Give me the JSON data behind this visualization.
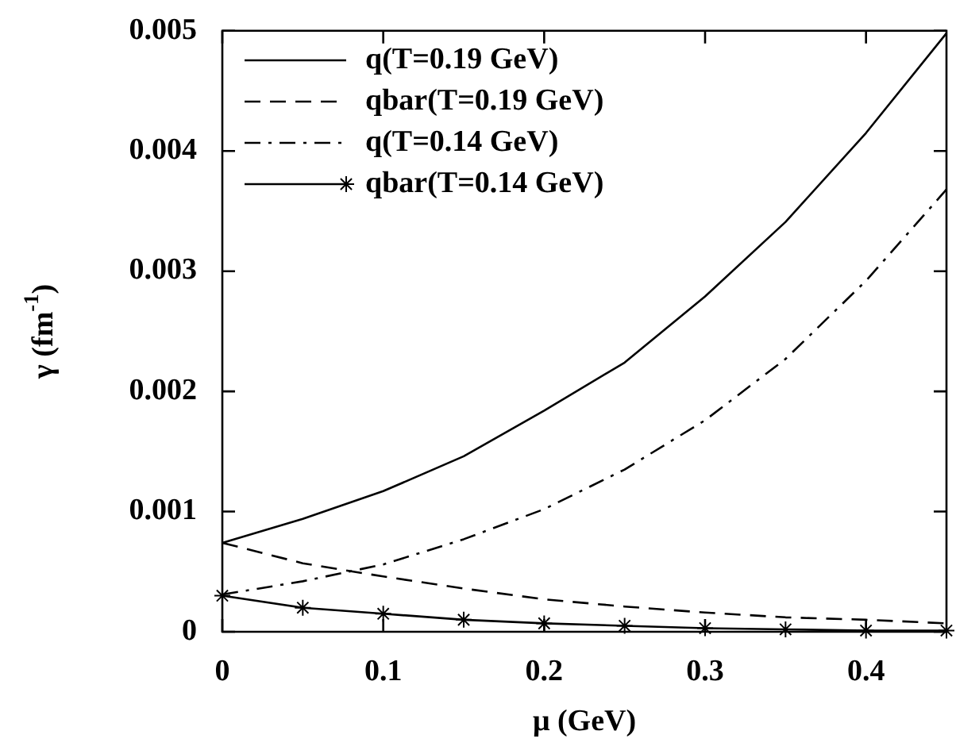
{
  "chart_data": {
    "type": "line",
    "xlabel": "μ (GeV)",
    "ylabel": "γ (fm$^{-1}$)",
    "x": [
      0,
      0.05,
      0.1,
      0.15,
      0.2,
      0.25,
      0.3,
      0.35,
      0.4,
      0.45
    ],
    "xlim": [
      0,
      0.45
    ],
    "xticks": [
      0,
      0.1,
      0.2,
      0.3,
      0.4
    ],
    "ylim": [
      0,
      0.005
    ],
    "yticks": [
      0,
      0.001,
      0.002,
      0.003,
      0.004,
      0.005
    ],
    "grid": false,
    "legend": "top left",
    "series": [
      {
        "name": "q(T=0.19 GeV)",
        "color": "#000000",
        "line_style": "solid",
        "marker": "none",
        "values": [
          0.00074,
          0.00094,
          0.00117,
          0.00146,
          0.00184,
          0.00224,
          0.00279,
          0.00341,
          0.00415,
          0.00498
        ]
      },
      {
        "name": "qbar(T=0.19 GeV)",
        "color": "#000000",
        "line_style": "dashed",
        "marker": "none",
        "values": [
          0.00074,
          0.00057,
          0.00046,
          0.00036,
          0.00027,
          0.00021,
          0.00016,
          0.00012,
          0.0001,
          7e-05
        ]
      },
      {
        "name": "q(T=0.14 GeV)",
        "color": "#000000",
        "line_style": "dashdot",
        "marker": "none",
        "values": [
          0.00031,
          0.00042,
          0.00056,
          0.00077,
          0.00102,
          0.00135,
          0.00176,
          0.00227,
          0.00292,
          0.00368
        ]
      },
      {
        "name": "qbar(T=0.14 GeV)",
        "color": "#000000",
        "line_style": "solid",
        "marker": "cross",
        "values": [
          0.0003,
          0.0002,
          0.00015,
          0.0001,
          7e-05,
          5e-05,
          3e-05,
          2e-05,
          1e-05,
          1e-05
        ]
      }
    ]
  }
}
